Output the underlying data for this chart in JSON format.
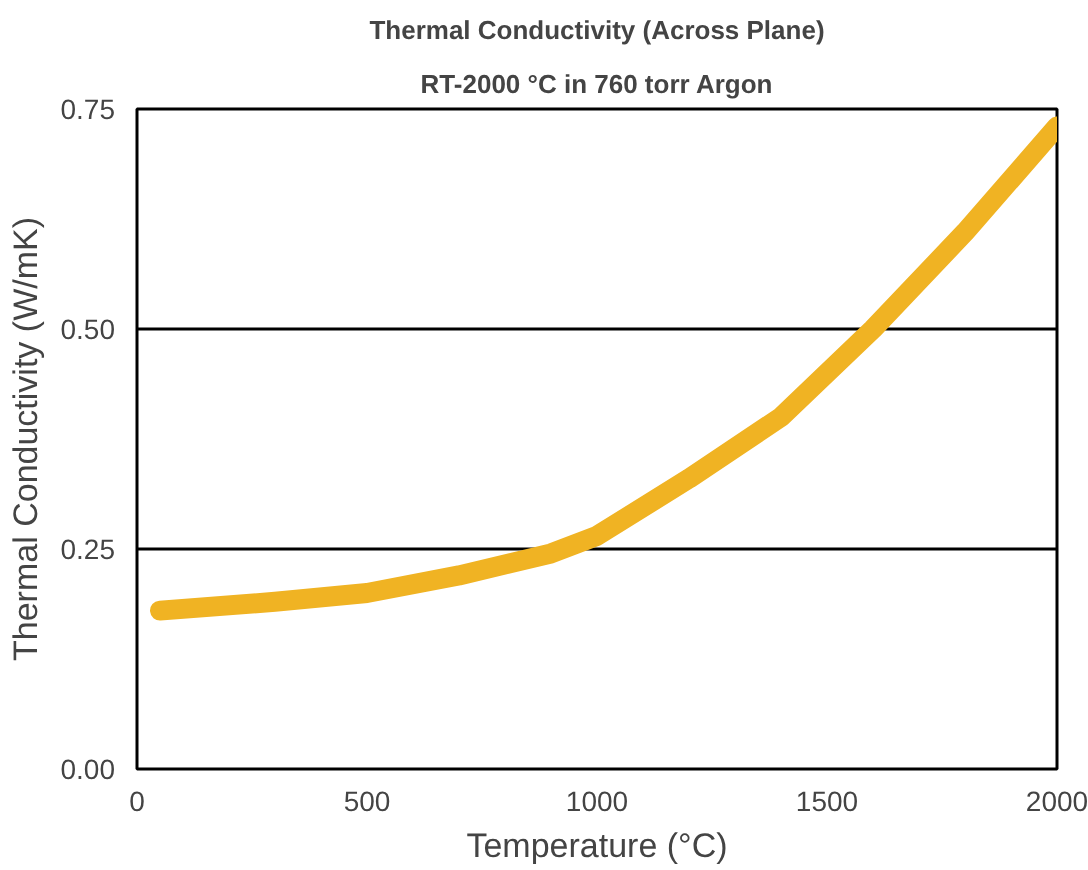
{
  "chart_data": {
    "type": "line",
    "title": "Thermal Conductivity (Across Plane)",
    "subtitle": "RT-2000 °C in 760 torr Argon",
    "xlabel": "Temperature (°C)",
    "ylabel": "Thermal Conductivity (W/mK)",
    "x": [
      50,
      300,
      500,
      700,
      900,
      1000,
      1200,
      1400,
      1600,
      1800,
      2000
    ],
    "series": [
      {
        "color": "#f0b323",
        "values": [
          0.18,
          0.19,
          0.2,
          0.22,
          0.245,
          0.265,
          0.33,
          0.4,
          0.5,
          0.61,
          0.73
        ]
      }
    ],
    "xlim": [
      0,
      2000
    ],
    "xticks": [
      0,
      500,
      1000,
      1500,
      2000
    ],
    "ylim": [
      0,
      0.75
    ],
    "yticks": [
      {
        "value": 0,
        "label": "0.00"
      },
      {
        "value": 0.25,
        "label": "0.25"
      },
      {
        "value": 0.5,
        "label": "0.50"
      },
      {
        "value": 0.75,
        "label": "0.75"
      }
    ],
    "grid": "y",
    "marker": "none",
    "line_style": "solid"
  }
}
